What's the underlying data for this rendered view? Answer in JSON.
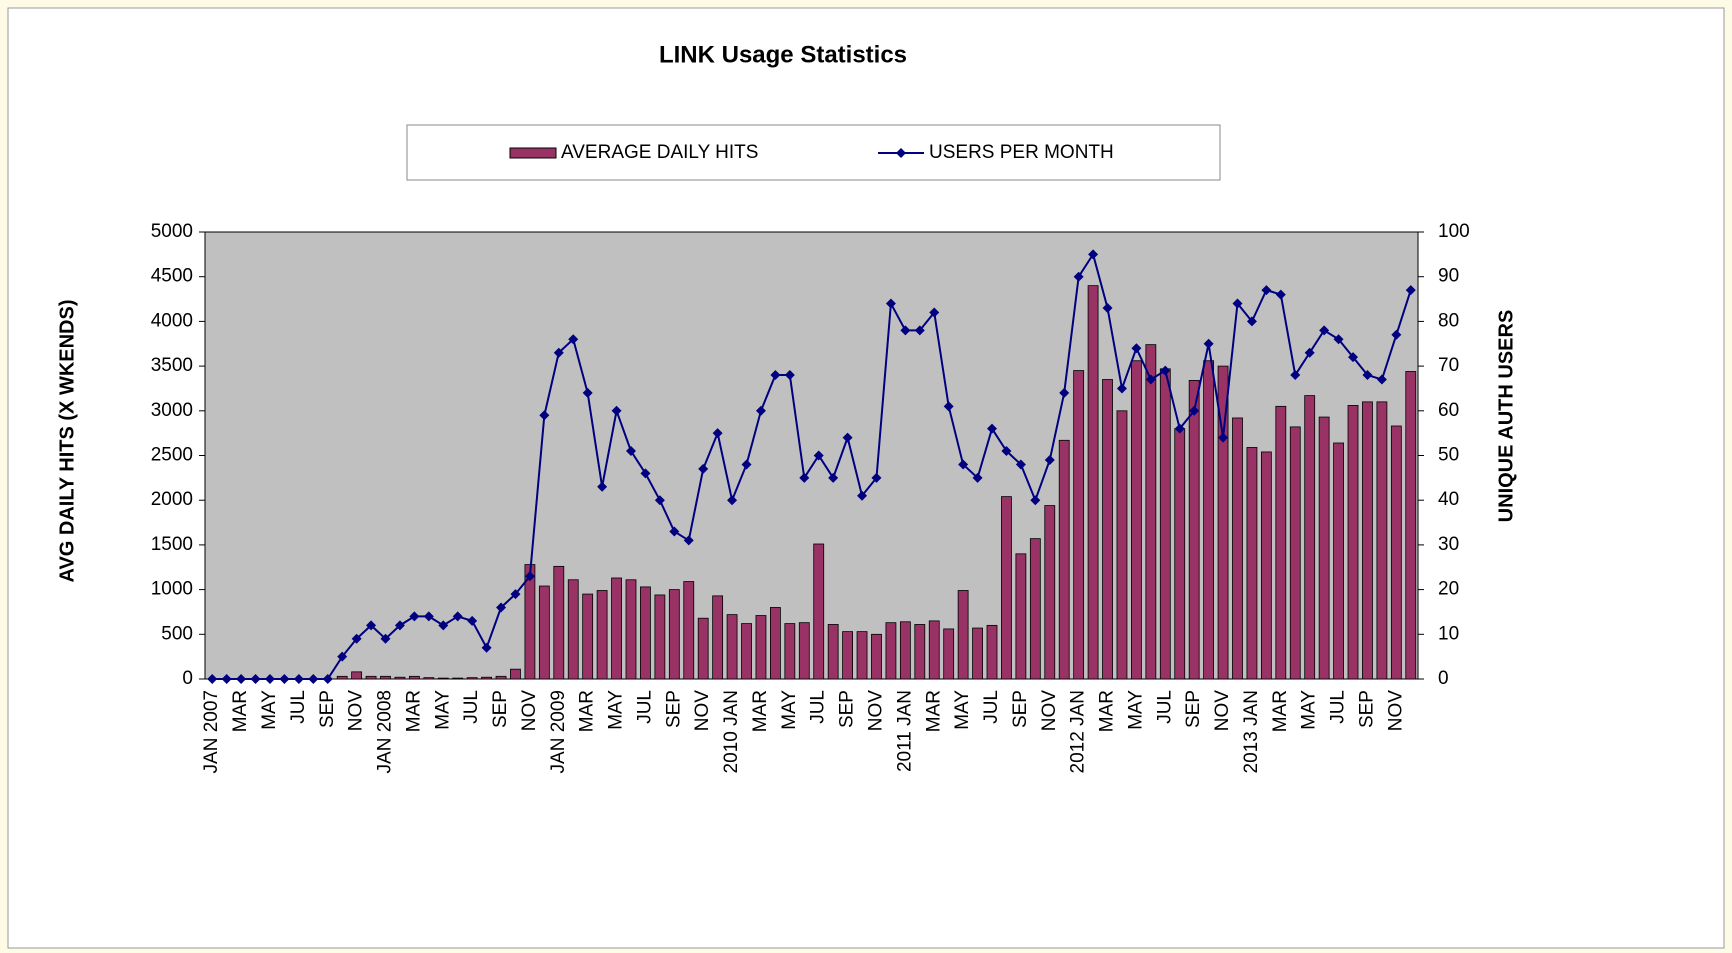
{
  "chart_data": {
    "type": "bar-line",
    "title": "LINK Usage Statistics",
    "y_label": "AVG DAILY HITS (X WKENDS)",
    "y2_label": "UNIQUE AUTH USERS",
    "categories": [
      "JAN 2007",
      null,
      "MAR",
      null,
      "MAY",
      null,
      "JUL",
      null,
      "SEP",
      null,
      "NOV",
      null,
      "JAN 2008",
      null,
      "MAR",
      null,
      "MAY",
      null,
      "JUL",
      null,
      "SEP",
      null,
      "NOV",
      null,
      "JAN 2009",
      null,
      "MAR",
      null,
      "MAY",
      null,
      "JUL",
      null,
      "SEP",
      null,
      "NOV",
      null,
      "2010 JAN",
      null,
      "MAR",
      null,
      "MAY",
      null,
      "JUL",
      null,
      "SEP",
      null,
      "NOV",
      null,
      "2011 JAN",
      null,
      "MAR",
      null,
      "MAY",
      null,
      "JUL",
      null,
      "SEP",
      null,
      "NOV",
      null,
      "2012 JAN",
      null,
      "MAR",
      null,
      "MAY",
      null,
      "JUL",
      null,
      "SEP",
      null,
      "NOV",
      null,
      "2013 JAN",
      null,
      "MAR",
      null,
      "MAY",
      null,
      "JUL",
      null,
      "SEP",
      null,
      "NOV",
      null
    ],
    "series": [
      {
        "name": "AVERAGE DAILY HITS",
        "type": "bar",
        "color": "#993366",
        "values": [
          0,
          0,
          0,
          0,
          0,
          0,
          0,
          0,
          0,
          30,
          80,
          30,
          30,
          20,
          30,
          15,
          10,
          10,
          15,
          20,
          30,
          110,
          1280,
          1040,
          1260,
          1110,
          950,
          990,
          1130,
          1110,
          1030,
          940,
          1000,
          1090,
          680,
          930,
          720,
          620,
          710,
          800,
          620,
          630,
          1510,
          610,
          530,
          530,
          500,
          630,
          640,
          610,
          650,
          560,
          990,
          570,
          600,
          2040,
          1400,
          1570,
          1940,
          2670,
          3450,
          4400,
          3350,
          3000,
          3560,
          3740,
          3470,
          2800,
          3340,
          3560,
          3500,
          2920,
          2590,
          2540,
          3050,
          2820,
          3170,
          2930,
          2640,
          3060,
          3100,
          3100,
          2830,
          3440
        ]
      },
      {
        "name": "USERS PER MONTH",
        "type": "line",
        "axis": "y2",
        "color": "#000080",
        "values": [
          0,
          0,
          0,
          0,
          0,
          0,
          0,
          0,
          0,
          5,
          9,
          12,
          9,
          12,
          14,
          14,
          12,
          14,
          13,
          7,
          16,
          19,
          23,
          59,
          73,
          76,
          64,
          43,
          60,
          51,
          46,
          40,
          33,
          31,
          47,
          55,
          40,
          48,
          60,
          68,
          68,
          45,
          50,
          45,
          54,
          41,
          45,
          84,
          78,
          78,
          82,
          61,
          48,
          45,
          56,
          51,
          48,
          40,
          49,
          64,
          90,
          95,
          83,
          65,
          74,
          67,
          69,
          56,
          60,
          75,
          54,
          84,
          80,
          87,
          86,
          68,
          73,
          78,
          76,
          72,
          68,
          67,
          77,
          87
        ]
      }
    ],
    "ylim": [
      0,
      5000
    ],
    "yticks": [
      0,
      500,
      1000,
      1500,
      2000,
      2500,
      3000,
      3500,
      4000,
      4500,
      5000
    ],
    "y2lim": [
      0,
      100
    ],
    "y2ticks": [
      0,
      10,
      20,
      30,
      40,
      50,
      60,
      70,
      80,
      90,
      100
    ],
    "plot_background": "#c0c0c0"
  }
}
